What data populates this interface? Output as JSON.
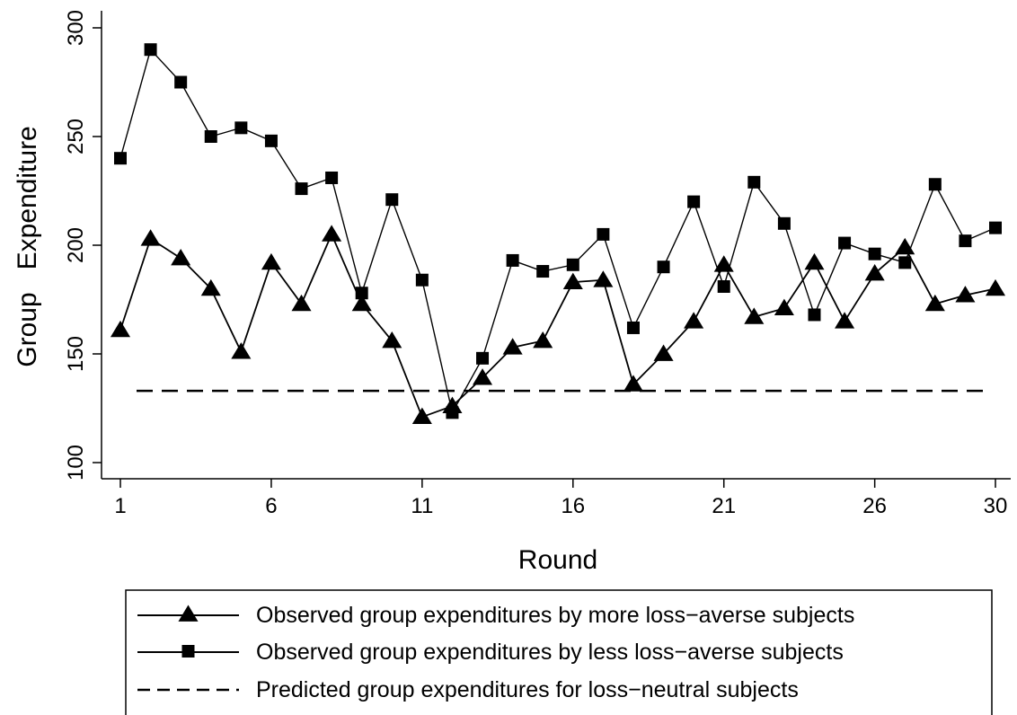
{
  "chart_data": {
    "type": "line",
    "xlabel": "Round",
    "ylabel": "Group   Expenditure",
    "xlim": [
      1,
      30
    ],
    "ylim": [
      100,
      300
    ],
    "x_ticks": [
      1,
      6,
      11,
      16,
      21,
      26,
      30
    ],
    "y_ticks": [
      100,
      150,
      200,
      250,
      300
    ],
    "grid": false,
    "legend_position": "bottom",
    "x": [
      1,
      2,
      3,
      4,
      5,
      6,
      7,
      8,
      9,
      10,
      11,
      12,
      13,
      14,
      15,
      16,
      17,
      18,
      19,
      20,
      21,
      22,
      23,
      24,
      25,
      26,
      27,
      28,
      29,
      30
    ],
    "series": [
      {
        "name": "Observed group expenditures by more loss−averse subjects",
        "marker": "triangle",
        "line_style": "solid",
        "values": [
          161,
          203,
          194,
          180,
          151,
          192,
          173,
          205,
          173,
          156,
          121,
          126,
          139,
          153,
          156,
          183,
          184,
          136,
          150,
          165,
          191,
          167,
          171,
          192,
          165,
          187,
          199,
          173,
          177,
          180
        ]
      },
      {
        "name": "Observed group expenditures by less loss−averse subjects",
        "marker": "square",
        "line_style": "solid",
        "values": [
          240,
          290,
          275,
          250,
          254,
          248,
          226,
          231,
          178,
          221,
          184,
          123,
          148,
          193,
          188,
          191,
          205,
          162,
          190,
          220,
          181,
          229,
          210,
          168,
          201,
          196,
          192,
          228,
          202,
          208
        ]
      },
      {
        "name": "Predicted group expenditures for loss−neutral subjects",
        "marker": "none",
        "line_style": "dashed",
        "values": [
          133,
          133,
          133,
          133,
          133,
          133,
          133,
          133,
          133,
          133,
          133,
          133,
          133,
          133,
          133,
          133,
          133,
          133,
          133,
          133,
          133,
          133,
          133,
          133,
          133,
          133,
          133,
          133,
          133,
          133
        ]
      }
    ]
  }
}
